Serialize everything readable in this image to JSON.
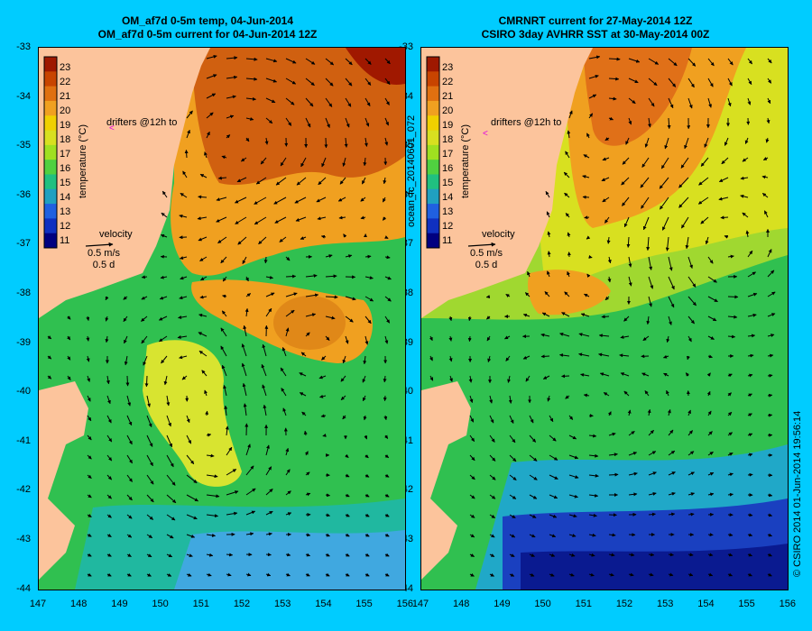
{
  "left_panel": {
    "title_line1": "OM_af7d 0-5m temp, 04-Jun-2014",
    "title_line2": "OM_af7d 0-5m current for 04-Jun-2014 12Z",
    "drifters_label": "drifters @12h to",
    "velocity_label": "velocity",
    "velocity_scale": "0.5 m/s",
    "velocity_time": "0.5 d",
    "colorbar_label": "temperature (°C)"
  },
  "right_panel": {
    "title_line1": "CMRNRT current for 27-May-2014 12Z",
    "title_line2": "CSIRO 3day AVHRR SST at 30-May-2014 00Z",
    "drifters_label": "drifters @12h to",
    "velocity_label": "velocity",
    "velocity_scale": "0.5 m/s",
    "velocity_time": "0.5 d",
    "colorbar_label": "temperature (°C)",
    "side_label": "ocean_fc_20140601_072"
  },
  "credit": "© CSIRO 2014   01-Jun-2014 19:56:14",
  "colorbar_ticks": [
    "23",
    "22",
    "21",
    "20",
    "19",
    "18",
    "17",
    "16",
    "15",
    "14",
    "13",
    "12",
    "11"
  ],
  "colorbar_colors": [
    "#9e1800",
    "#c84400",
    "#e07010",
    "#f0a020",
    "#f0d000",
    "#d8e020",
    "#a0e020",
    "#50d040",
    "#20c080",
    "#20a0c0",
    "#2060e0",
    "#1030c0",
    "#000080"
  ],
  "y_ticks": [
    "-33",
    "-34",
    "-35",
    "-36",
    "-37",
    "-38",
    "-39",
    "-40",
    "-41",
    "-42",
    "-43",
    "-44"
  ],
  "x_ticks": [
    "147",
    "148",
    "149",
    "150",
    "151",
    "152",
    "153",
    "154",
    "155",
    "156"
  ],
  "colors": {
    "background": "#00ccff",
    "land": "#fcc49c"
  }
}
